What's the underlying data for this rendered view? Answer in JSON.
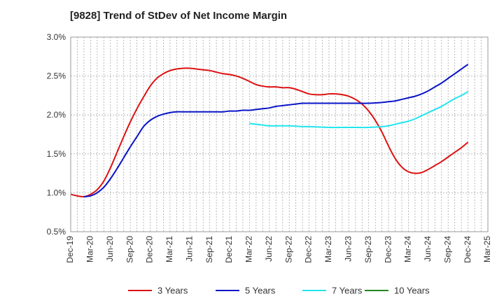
{
  "chart_data": {
    "type": "line",
    "title": "[9828]  Trend of StDev of Net Income Margin",
    "xlabel": "",
    "ylabel": "",
    "ylim": [
      0.5,
      3.0
    ],
    "yticks": [
      0.5,
      1.0,
      1.5,
      2.0,
      2.5,
      3.0
    ],
    "ytick_labels": [
      "0.5%",
      "1.0%",
      "1.5%",
      "2.0%",
      "2.5%",
      "3.0%"
    ],
    "x_ticks": [
      "Dec-19",
      "Mar-20",
      "Jun-20",
      "Sep-20",
      "Dec-20",
      "Mar-21",
      "Jun-21",
      "Sep-21",
      "Dec-21",
      "Mar-22",
      "Jun-22",
      "Sep-22",
      "Dec-22",
      "Mar-23",
      "Jun-23",
      "Sep-23",
      "Dec-23",
      "Mar-24",
      "Jun-24",
      "Sep-24",
      "Dec-24",
      "Mar-25"
    ],
    "grid": true,
    "legend_position": "bottom",
    "series": [
      {
        "name": "3 Years",
        "color": "#dd1111",
        "points": [
          [
            "Dec-19",
            0.98
          ],
          [
            "Jan-20",
            0.96
          ],
          [
            "Feb-20",
            0.95
          ],
          [
            "Mar-20",
            0.98
          ],
          [
            "Apr-20",
            1.04
          ],
          [
            "May-20",
            1.15
          ],
          [
            "Jun-20",
            1.32
          ],
          [
            "Jul-20",
            1.52
          ],
          [
            "Aug-20",
            1.72
          ],
          [
            "Sep-20",
            1.91
          ],
          [
            "Oct-20",
            2.08
          ],
          [
            "Nov-20",
            2.23
          ],
          [
            "Dec-20",
            2.37
          ],
          [
            "Jan-21",
            2.47
          ],
          [
            "Feb-21",
            2.53
          ],
          [
            "Mar-21",
            2.57
          ],
          [
            "Apr-21",
            2.59
          ],
          [
            "May-21",
            2.6
          ],
          [
            "Jun-21",
            2.6
          ],
          [
            "Jul-21",
            2.59
          ],
          [
            "Aug-21",
            2.58
          ],
          [
            "Sep-21",
            2.57
          ],
          [
            "Oct-21",
            2.55
          ],
          [
            "Nov-21",
            2.53
          ],
          [
            "Dec-21",
            2.52
          ],
          [
            "Jan-22",
            2.5
          ],
          [
            "Feb-22",
            2.47
          ],
          [
            "Mar-22",
            2.43
          ],
          [
            "Apr-22",
            2.39
          ],
          [
            "May-22",
            2.37
          ],
          [
            "Jun-22",
            2.36
          ],
          [
            "Jul-22",
            2.36
          ],
          [
            "Aug-22",
            2.35
          ],
          [
            "Sep-22",
            2.35
          ],
          [
            "Oct-22",
            2.33
          ],
          [
            "Nov-22",
            2.3
          ],
          [
            "Dec-22",
            2.27
          ],
          [
            "Jan-23",
            2.26
          ],
          [
            "Feb-23",
            2.26
          ],
          [
            "Mar-23",
            2.27
          ],
          [
            "Apr-23",
            2.27
          ],
          [
            "May-23",
            2.26
          ],
          [
            "Jun-23",
            2.24
          ],
          [
            "Jul-23",
            2.2
          ],
          [
            "Aug-23",
            2.14
          ],
          [
            "Sep-23",
            2.05
          ],
          [
            "Oct-23",
            1.93
          ],
          [
            "Nov-23",
            1.78
          ],
          [
            "Dec-23",
            1.6
          ],
          [
            "Jan-24",
            1.44
          ],
          [
            "Feb-24",
            1.33
          ],
          [
            "Mar-24",
            1.27
          ],
          [
            "Apr-24",
            1.25
          ],
          [
            "May-24",
            1.26
          ],
          [
            "Jun-24",
            1.3
          ],
          [
            "Jul-24",
            1.35
          ],
          [
            "Aug-24",
            1.4
          ],
          [
            "Sep-24",
            1.46
          ],
          [
            "Oct-24",
            1.52
          ],
          [
            "Nov-24",
            1.58
          ],
          [
            "Dec-24",
            1.65
          ]
        ]
      },
      {
        "name": "5 Years",
        "color": "#0a14c8",
        "points": [
          [
            "Feb-20",
            0.95
          ],
          [
            "Mar-20",
            0.96
          ],
          [
            "Apr-20",
            1.0
          ],
          [
            "May-20",
            1.07
          ],
          [
            "Jun-20",
            1.18
          ],
          [
            "Jul-20",
            1.31
          ],
          [
            "Aug-20",
            1.45
          ],
          [
            "Sep-20",
            1.59
          ],
          [
            "Oct-20",
            1.72
          ],
          [
            "Nov-20",
            1.85
          ],
          [
            "Dec-20",
            1.93
          ],
          [
            "Jan-21",
            1.98
          ],
          [
            "Feb-21",
            2.01
          ],
          [
            "Mar-21",
            2.03
          ],
          [
            "Apr-21",
            2.04
          ],
          [
            "May-21",
            2.04
          ],
          [
            "Jun-21",
            2.04
          ],
          [
            "Jul-21",
            2.04
          ],
          [
            "Aug-21",
            2.04
          ],
          [
            "Sep-21",
            2.04
          ],
          [
            "Oct-21",
            2.04
          ],
          [
            "Nov-21",
            2.04
          ],
          [
            "Dec-21",
            2.05
          ],
          [
            "Jan-22",
            2.05
          ],
          [
            "Feb-22",
            2.06
          ],
          [
            "Mar-22",
            2.06
          ],
          [
            "Apr-22",
            2.07
          ],
          [
            "May-22",
            2.08
          ],
          [
            "Jun-22",
            2.09
          ],
          [
            "Jul-22",
            2.11
          ],
          [
            "Aug-22",
            2.12
          ],
          [
            "Sep-22",
            2.13
          ],
          [
            "Oct-22",
            2.14
          ],
          [
            "Nov-22",
            2.15
          ],
          [
            "Dec-22",
            2.15
          ],
          [
            "Mar-23",
            2.15
          ],
          [
            "Jun-23",
            2.15
          ],
          [
            "Sep-23",
            2.15
          ],
          [
            "Nov-23",
            2.16
          ],
          [
            "Dec-23",
            2.17
          ],
          [
            "Jan-24",
            2.18
          ],
          [
            "Feb-24",
            2.2
          ],
          [
            "Mar-24",
            2.22
          ],
          [
            "Apr-24",
            2.24
          ],
          [
            "May-24",
            2.27
          ],
          [
            "Jun-24",
            2.31
          ],
          [
            "Jul-24",
            2.36
          ],
          [
            "Aug-24",
            2.41
          ],
          [
            "Sep-24",
            2.47
          ],
          [
            "Oct-24",
            2.53
          ],
          [
            "Nov-24",
            2.59
          ],
          [
            "Dec-24",
            2.65
          ]
        ]
      },
      {
        "name": "7 Years",
        "color": "#22e5ee",
        "points": [
          [
            "Mar-22",
            1.89
          ],
          [
            "Apr-22",
            1.88
          ],
          [
            "May-22",
            1.87
          ],
          [
            "Jun-22",
            1.86
          ],
          [
            "Sep-22",
            1.86
          ],
          [
            "Nov-22",
            1.85
          ],
          [
            "Dec-22",
            1.85
          ],
          [
            "Mar-23",
            1.84
          ],
          [
            "Jun-23",
            1.84
          ],
          [
            "Sep-23",
            1.84
          ],
          [
            "Nov-23",
            1.85
          ],
          [
            "Dec-23",
            1.86
          ],
          [
            "Jan-24",
            1.88
          ],
          [
            "Feb-24",
            1.9
          ],
          [
            "Mar-24",
            1.92
          ],
          [
            "Apr-24",
            1.95
          ],
          [
            "May-24",
            1.99
          ],
          [
            "Jun-24",
            2.03
          ],
          [
            "Jul-24",
            2.07
          ],
          [
            "Aug-24",
            2.11
          ],
          [
            "Sep-24",
            2.16
          ],
          [
            "Oct-24",
            2.21
          ],
          [
            "Nov-24",
            2.25
          ],
          [
            "Dec-24",
            2.3
          ]
        ]
      },
      {
        "name": "10 Years",
        "color": "#1f8a1f",
        "points": []
      }
    ]
  }
}
